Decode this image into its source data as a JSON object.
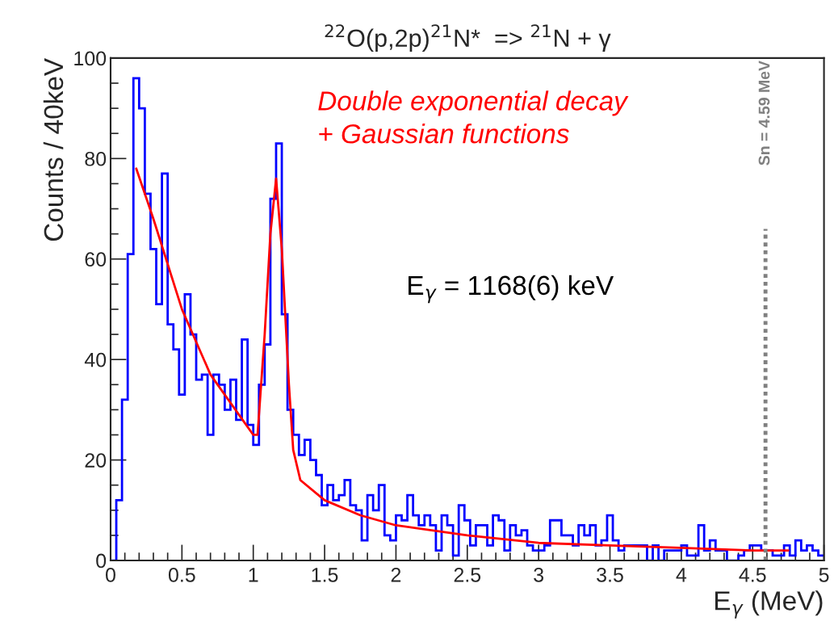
{
  "chart_data": {
    "type": "histogram",
    "title": "$^{22}$O(p,2p)$^{21}$N*  => $^{21}$N + γ",
    "xlabel": "E$_{γ}$ (MeV)",
    "ylabel": "Counts / 40keV",
    "bins": [
      0,
      0.04,
      0.08,
      0.12,
      0.16,
      0.2,
      0.24,
      0.28,
      0.32,
      0.36,
      0.4,
      0.44,
      0.48,
      0.52,
      0.56,
      0.6,
      0.64,
      0.68,
      0.72,
      0.76,
      0.8,
      0.84,
      0.88,
      0.92,
      0.96,
      1.0,
      1.04,
      1.08,
      1.12,
      1.16,
      1.2,
      1.24,
      1.28,
      1.32,
      1.36,
      1.4,
      1.44,
      1.48,
      1.52,
      1.56,
      1.6,
      1.64,
      1.68,
      1.72,
      1.76,
      1.8,
      1.84,
      1.88,
      1.92,
      1.96,
      2.0,
      2.04,
      2.08,
      2.12,
      2.16,
      2.2,
      2.24,
      2.28,
      2.32,
      2.36,
      2.4,
      2.44,
      2.48,
      2.52,
      2.56,
      2.6,
      2.64,
      2.68,
      2.72,
      2.76,
      2.8,
      2.84,
      2.88,
      2.92,
      2.96,
      3.0,
      3.04,
      3.08,
      3.12,
      3.16,
      3.2,
      3.24,
      3.28,
      3.32,
      3.36,
      3.4,
      3.44,
      3.48,
      3.52,
      3.56,
      3.6,
      3.64,
      3.68,
      3.72,
      3.76,
      3.8,
      3.84,
      3.88,
      3.92,
      3.96,
      4.0,
      4.04,
      4.08,
      4.12,
      4.16,
      4.2,
      4.24,
      4.28,
      4.32,
      4.36,
      4.4,
      4.44,
      4.48,
      4.52,
      4.56,
      4.6,
      4.64,
      4.68,
      4.72,
      4.76,
      4.8,
      4.84,
      4.88,
      4.92,
      4.96,
      5.0
    ],
    "series": [
      {
        "color": "#0000ff",
        "values": [
          0,
          12,
          32,
          61,
          96,
          90,
          73,
          62,
          51,
          77,
          47,
          42,
          33,
          53,
          45,
          36,
          37,
          25,
          37,
          35,
          30,
          36,
          28,
          44,
          27,
          23,
          35,
          43,
          72,
          83,
          49,
          30,
          25,
          21,
          24,
          20,
          17,
          11,
          15,
          12,
          13,
          16,
          11,
          10,
          4,
          13,
          10,
          15,
          5,
          4,
          9,
          8,
          13,
          9,
          7,
          9,
          7,
          2,
          9,
          7,
          1,
          11,
          8,
          3,
          7,
          7,
          3,
          9,
          8,
          2,
          7,
          5,
          6,
          3,
          2,
          2,
          3,
          8,
          8,
          5,
          5,
          3,
          7,
          5,
          7,
          3,
          4,
          9,
          4,
          2,
          3,
          3,
          3,
          3,
          0,
          3,
          0,
          2,
          2,
          2,
          3,
          1,
          1,
          7,
          2,
          4,
          2,
          2,
          0,
          0,
          1,
          2,
          3,
          3,
          2,
          2,
          1,
          1,
          3,
          1,
          4,
          2,
          3,
          2,
          1
        ]
      },
      {
        "type": "line",
        "color": "#ff0000",
        "x": [
          0.18,
          0.3,
          0.5,
          0.7,
          0.9,
          1.0,
          1.03,
          1.08,
          1.12,
          1.16,
          1.2,
          1.25,
          1.28,
          1.33,
          1.5,
          1.75,
          2.0,
          2.5,
          3.0,
          3.5,
          4.0,
          4.5,
          4.75
        ],
        "values": [
          78,
          68,
          50,
          37,
          29,
          25,
          25,
          45,
          65,
          76,
          62,
          35,
          22,
          16,
          12,
          9,
          7,
          5,
          3.5,
          3,
          2.5,
          2,
          2
        ]
      }
    ],
    "xlim": [
      0,
      5
    ],
    "xticks": [
      0,
      0.5,
      1,
      1.5,
      2,
      2.5,
      3,
      3.5,
      4,
      4.5,
      5
    ],
    "ylim": [
      0,
      100
    ],
    "yticks": [
      0,
      20,
      40,
      60,
      80,
      100
    ],
    "ref_lines": [
      {
        "axis": "x",
        "value": 4.59,
        "label": "Sn = 4.59 MeV",
        "color": "#808080",
        "line_style": "dotted"
      }
    ],
    "annotations": [
      "Double exponential decay\n+ Gaussian functions",
      "E$_{γ}$ = 1168(6) keV"
    ],
    "grid": false,
    "legend": false
  }
}
